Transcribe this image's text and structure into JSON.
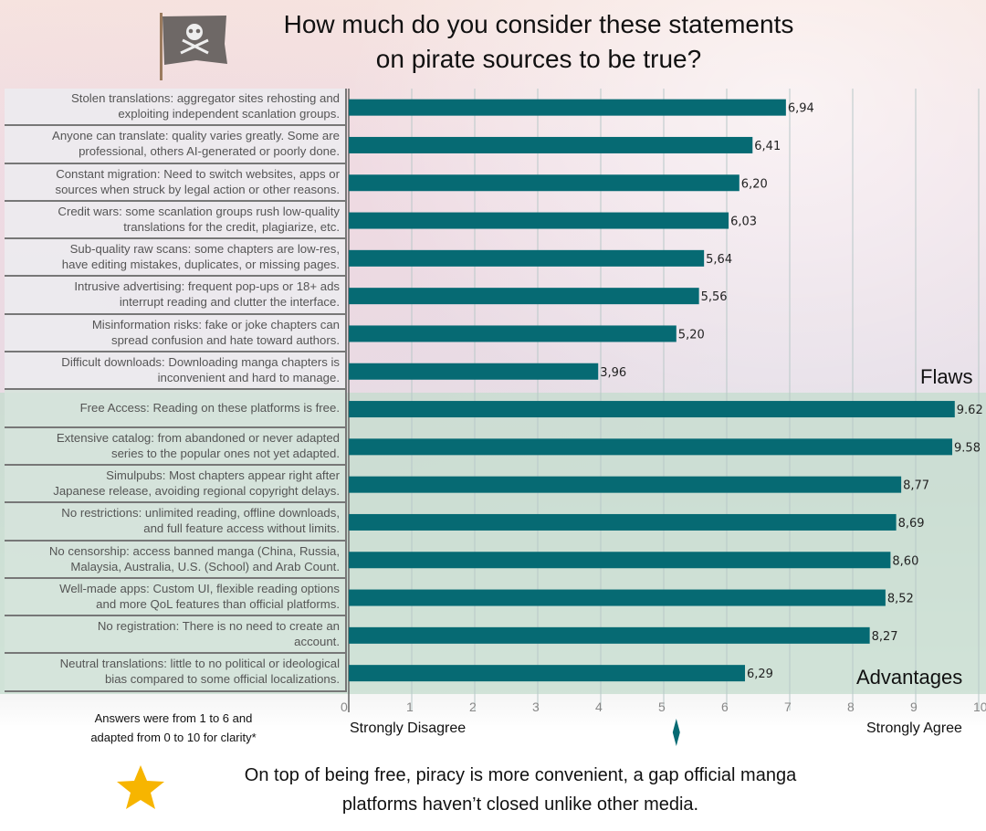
{
  "title_line1": "How much do you consider these statements",
  "title_line2": "on pirate sources to be true?",
  "groups": {
    "flaws": "Flaws",
    "advantages": "Advantages"
  },
  "note_line1": "Answers were from 1 to 6 and",
  "note_line2": "adapted from 0 to 10 for clarity*",
  "scale_low": "Strongly Disagree",
  "scale_high": "Strongly Agree",
  "footer_line1": "On top of being free, piracy is more convenient, a gap official manga",
  "footer_line2": "platforms haven’t closed unlike other media.",
  "colors": {
    "bar": "#066a73",
    "star": "#f7b500"
  },
  "chart_data": {
    "type": "bar",
    "orientation": "horizontal",
    "title": "How much do you consider these statements on pirate sources to be true?",
    "xlim": [
      0,
      10
    ],
    "xticks": [
      "0",
      "1",
      "2",
      "3",
      "4",
      "5",
      "6",
      "7",
      "8",
      "9",
      "10"
    ],
    "midpoint_marker": 5.2,
    "categories": [
      [
        "Stolen translations: aggregator sites rehosting and",
        "exploiting independent scanlation groups."
      ],
      [
        "Anyone can translate: quality varies greatly. Some are",
        "professional, others AI-generated or poorly done."
      ],
      [
        "Constant migration: Need to switch websites, apps or",
        "sources when struck by legal action or other reasons."
      ],
      [
        "Credit wars: some scanlation groups rush low-quality",
        "translations for the credit, plagiarize, etc."
      ],
      [
        "Sub-quality raw scans: some chapters are low-res,",
        "have editing mistakes, duplicates, or missing pages."
      ],
      [
        "Intrusive advertising: frequent pop-ups or 18+ ads",
        "interrupt reading and clutter the interface."
      ],
      [
        "Misinformation risks: fake or joke chapters can",
        "spread confusion and hate toward authors."
      ],
      [
        "Difficult downloads: Downloading manga chapters is",
        "inconvenient and hard to manage."
      ],
      [
        "Free Access: Reading on these platforms is free."
      ],
      [
        "Extensive catalog: from abandoned or never adapted",
        "series to the popular ones not yet adapted."
      ],
      [
        "Simulpubs: Most chapters appear right after",
        "Japanese release, avoiding regional copyright delays."
      ],
      [
        "No restrictions: unlimited reading, offline downloads,",
        "and full feature access without limits."
      ],
      [
        "No censorship: access banned manga (China, Russia,",
        "Malaysia, Australia, U.S. (School) and Arab Count."
      ],
      [
        "Well-made apps: Custom UI, flexible reading options",
        "and more QoL features than official platforms."
      ],
      [
        "No registration: There is no need to create an",
        "account."
      ],
      [
        "Neutral translations: little to no political or ideological",
        "bias compared to some official localizations."
      ]
    ],
    "group": [
      "Flaws",
      "Flaws",
      "Flaws",
      "Flaws",
      "Flaws",
      "Flaws",
      "Flaws",
      "Flaws",
      "Advantages",
      "Advantages",
      "Advantages",
      "Advantages",
      "Advantages",
      "Advantages",
      "Advantages",
      "Advantages"
    ],
    "values": [
      6.94,
      6.41,
      6.2,
      6.03,
      5.64,
      5.56,
      5.2,
      3.96,
      9.62,
      9.58,
      8.77,
      8.69,
      8.6,
      8.52,
      8.27,
      6.29
    ],
    "value_labels": [
      "6,94",
      "6,41",
      "6,20",
      "6,03",
      "5,64",
      "5,56",
      "5,20",
      "3,96",
      "9.62",
      "9.58",
      "8,77",
      "8,69",
      "8,60",
      "8,52",
      "8,27",
      "6,29"
    ]
  }
}
